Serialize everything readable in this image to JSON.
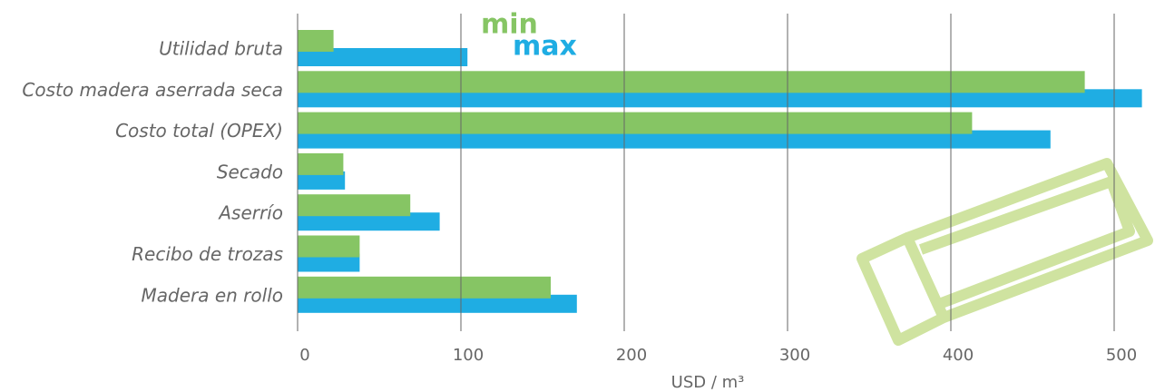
{
  "chart_data": {
    "type": "hbar",
    "x_label": "USD / m³",
    "categories": [
      "Utilidad bruta",
      "Costo madera aserrada seca",
      "Costo total (OPEX)",
      "Secado",
      "Aserrío",
      "Recibo de trozas",
      "Madera en rollo"
    ],
    "series": [
      {
        "name": "min",
        "color": "#86c564",
        "values": [
          22,
          482,
          413,
          28,
          69,
          38,
          155
        ]
      },
      {
        "name": "max",
        "color": "#1fade3",
        "values": [
          104,
          517,
          461,
          29,
          87,
          38,
          171
        ]
      }
    ],
    "xlim": [
      0,
      520
    ],
    "xticks": [
      0,
      100,
      200,
      300,
      400,
      500
    ],
    "grid": true
  }
}
